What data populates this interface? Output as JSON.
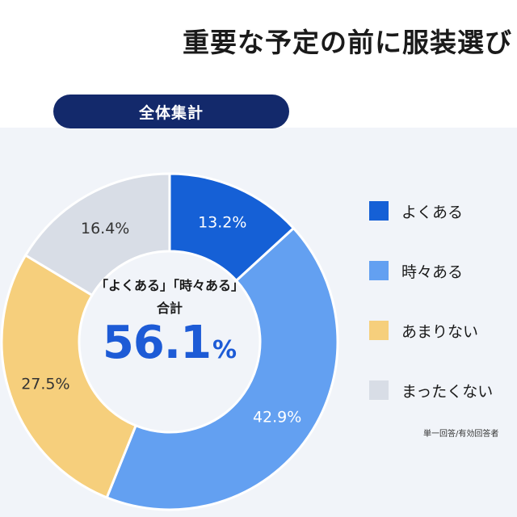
{
  "header": {
    "title": "重要な予定の前に服装選び"
  },
  "pill": {
    "label": "全体集計"
  },
  "center": {
    "line1": "「よくある」「時々ある」",
    "line2": "合計",
    "value": "56.1",
    "unit": "%"
  },
  "note": "単一回答/有効回答者",
  "colors": {
    "often": "#1560d6",
    "sometimes": "#63a0f1",
    "rarely": "#f6cf7c",
    "never": "#d8dde6",
    "pill": "#13296b",
    "accent": "#1d5bd6"
  },
  "chart_data": {
    "type": "pie",
    "title": "",
    "categories": [
      "よくある",
      "時々ある",
      "あまりない",
      "まったくない"
    ],
    "values": [
      13.2,
      42.9,
      27.5,
      16.4
    ],
    "value_labels": [
      "13.2%",
      "42.9%",
      "27.5%",
      "16.4%"
    ],
    "colors": [
      "#1560d6",
      "#63a0f1",
      "#f6cf7c",
      "#d8dde6"
    ],
    "legend_position": "right",
    "donut": true
  }
}
